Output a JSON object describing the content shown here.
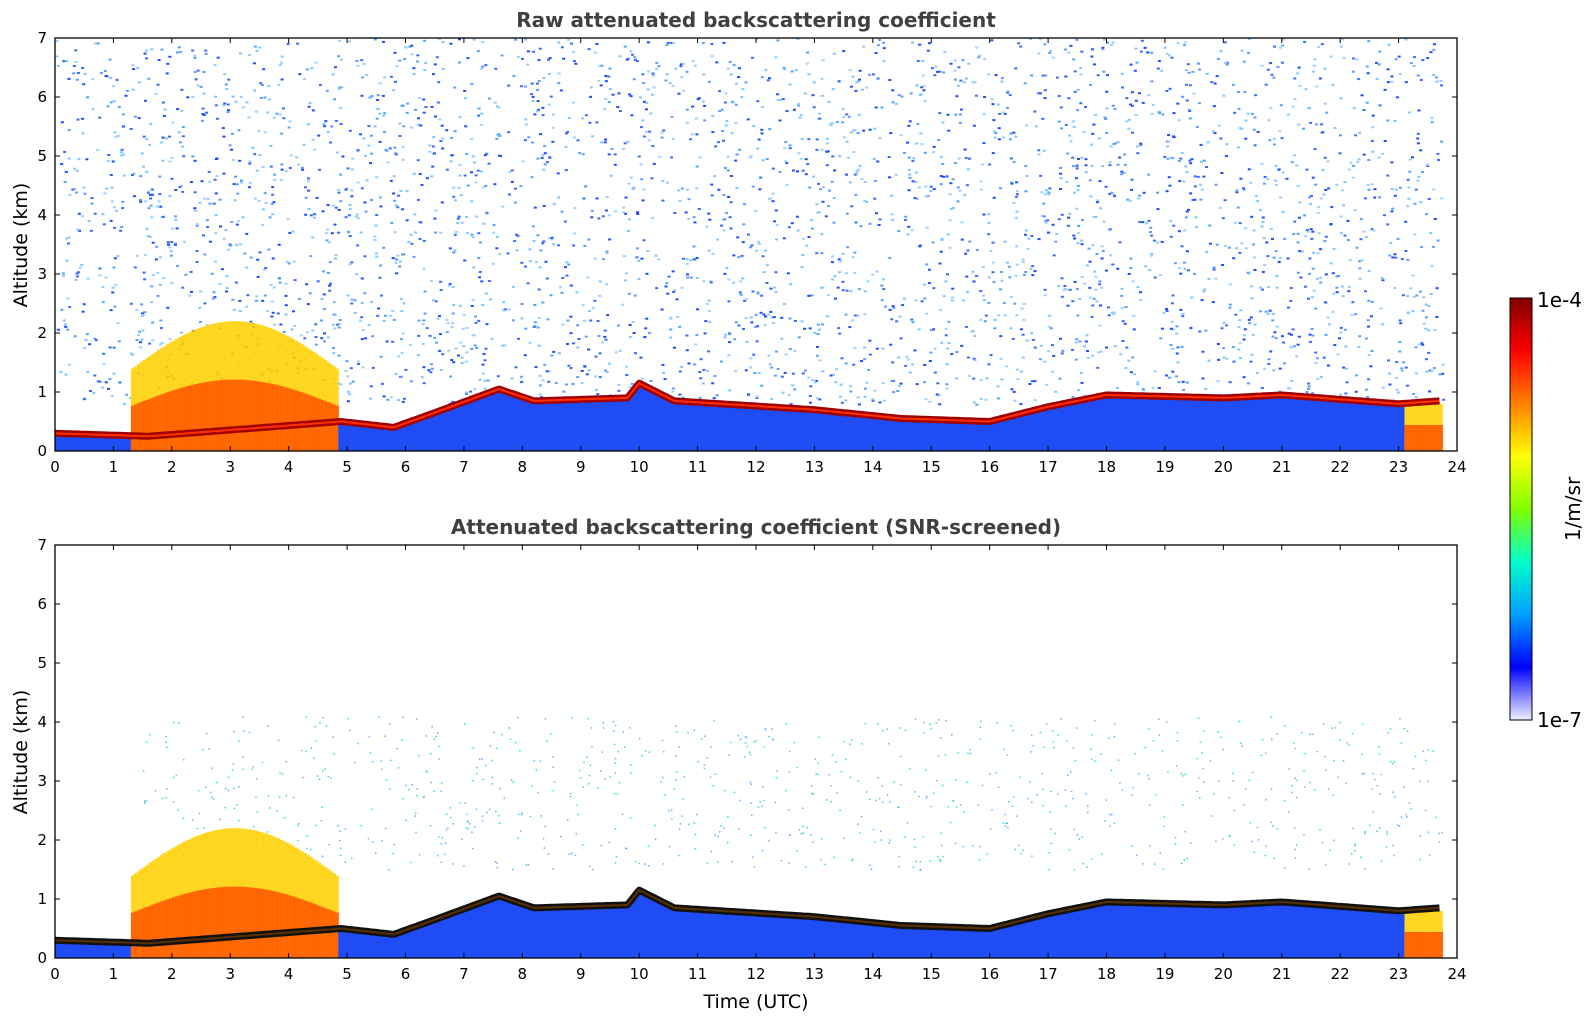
{
  "chart_data": [
    {
      "type": "heatmap",
      "title": "Raw attenuated backscattering coefficient",
      "xlabel": "",
      "ylabel": "Altitude (km)",
      "xlim": [
        0,
        24
      ],
      "ylim": [
        0,
        7
      ],
      "xticks": [
        "0",
        "1",
        "2",
        "3",
        "4",
        "5",
        "6",
        "7",
        "8",
        "9",
        "10",
        "11",
        "12",
        "13",
        "14",
        "15",
        "16",
        "17",
        "18",
        "19",
        "20",
        "21",
        "22",
        "23",
        "24"
      ],
      "yticks": [
        "0",
        "1",
        "2",
        "3",
        "4",
        "5",
        "6",
        "7"
      ],
      "features": {
        "cloud_layer_top_km": [
          [
            0,
            0.35
          ],
          [
            1.6,
            0.3
          ],
          [
            4.9,
            0.55
          ],
          [
            5.8,
            0.45
          ],
          [
            6.5,
            0.7
          ],
          [
            7.6,
            1.1
          ],
          [
            8.2,
            0.9
          ],
          [
            9.8,
            0.95
          ],
          [
            10.0,
            1.2
          ],
          [
            10.6,
            0.9
          ],
          [
            13.0,
            0.75
          ],
          [
            14.5,
            0.6
          ],
          [
            16.0,
            0.55
          ],
          [
            17.0,
            0.8
          ],
          [
            18.0,
            1.0
          ],
          [
            20.0,
            0.95
          ],
          [
            21.0,
            1.0
          ],
          [
            23.0,
            0.85
          ],
          [
            23.7,
            0.9
          ]
        ],
        "noise_region_km": [
          0.8,
          7.0
        ],
        "data_end_utc": 23.75
      }
    },
    {
      "type": "heatmap",
      "title": "Attenuated backscattering coefficient (SNR-screened)",
      "xlabel": "Time (UTC)",
      "ylabel": "Altitude (km)",
      "xlim": [
        0,
        24
      ],
      "ylim": [
        0,
        7
      ],
      "xticks": [
        "0",
        "1",
        "2",
        "3",
        "4",
        "5",
        "6",
        "7",
        "8",
        "9",
        "10",
        "11",
        "12",
        "13",
        "14",
        "15",
        "16",
        "17",
        "18",
        "19",
        "20",
        "21",
        "22",
        "23",
        "24"
      ],
      "yticks": [
        "0",
        "1",
        "2",
        "3",
        "4",
        "5",
        "6",
        "7"
      ],
      "features": {
        "cloud_layer_top_km": [
          [
            0,
            0.35
          ],
          [
            1.6,
            0.3
          ],
          [
            4.9,
            0.55
          ],
          [
            5.8,
            0.45
          ],
          [
            6.5,
            0.7
          ],
          [
            7.6,
            1.1
          ],
          [
            8.2,
            0.9
          ],
          [
            9.8,
            0.95
          ],
          [
            10.0,
            1.2
          ],
          [
            10.6,
            0.9
          ],
          [
            13.0,
            0.75
          ],
          [
            14.5,
            0.6
          ],
          [
            16.0,
            0.55
          ],
          [
            17.0,
            0.8
          ],
          [
            18.0,
            1.0
          ],
          [
            20.0,
            0.95
          ],
          [
            21.0,
            1.0
          ],
          [
            23.0,
            0.85
          ],
          [
            23.7,
            0.9
          ]
        ],
        "data_end_utc": 23.75
      }
    }
  ],
  "colorbar": {
    "max_label": "1e-4",
    "min_label": "1e-7",
    "label": "1/m/sr",
    "colormap": "jet",
    "stops": [
      "#f0f0ff",
      "#0000ff",
      "#00a0ff",
      "#00ffcc",
      "#80ff00",
      "#ffff00",
      "#ff8000",
      "#ff0000",
      "#800000"
    ]
  }
}
